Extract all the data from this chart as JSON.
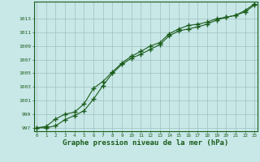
{
  "title": "Graphe pression niveau de la mer (hPa)",
  "x": [
    0,
    1,
    2,
    3,
    4,
    5,
    6,
    7,
    8,
    9,
    10,
    11,
    12,
    13,
    14,
    15,
    16,
    17,
    18,
    19,
    20,
    21,
    22,
    23
  ],
  "line1": [
    997.0,
    997.0,
    997.3,
    998.2,
    998.8,
    999.5,
    1001.2,
    1003.2,
    1005.0,
    1006.3,
    1007.2,
    1007.8,
    1008.5,
    1009.2,
    1010.5,
    1011.2,
    1011.5,
    1011.8,
    1012.2,
    1012.8,
    1013.2,
    1013.5,
    1014.0,
    1015.0
  ],
  "line2": [
    997.0,
    997.2,
    998.3,
    999.0,
    999.3,
    1000.5,
    1002.8,
    1003.8,
    1005.2,
    1006.5,
    1007.5,
    1008.2,
    1009.0,
    1009.5,
    1010.8,
    1011.5,
    1012.0,
    1012.2,
    1012.5,
    1013.0,
    1013.2,
    1013.5,
    1014.2,
    1015.2
  ],
  "line_color": "#1a5c1a",
  "bg_color": "#c8e8e8",
  "grid_color": "#a0c0c0",
  "ylim": [
    996.5,
    1015.5
  ],
  "yticks": [
    997,
    999,
    1001,
    1003,
    1005,
    1007,
    1009,
    1011,
    1013
  ],
  "title_color": "#1a5c1a",
  "title_fontsize": 6.5,
  "marker": "+",
  "marker_size": 4,
  "lw": 0.8
}
